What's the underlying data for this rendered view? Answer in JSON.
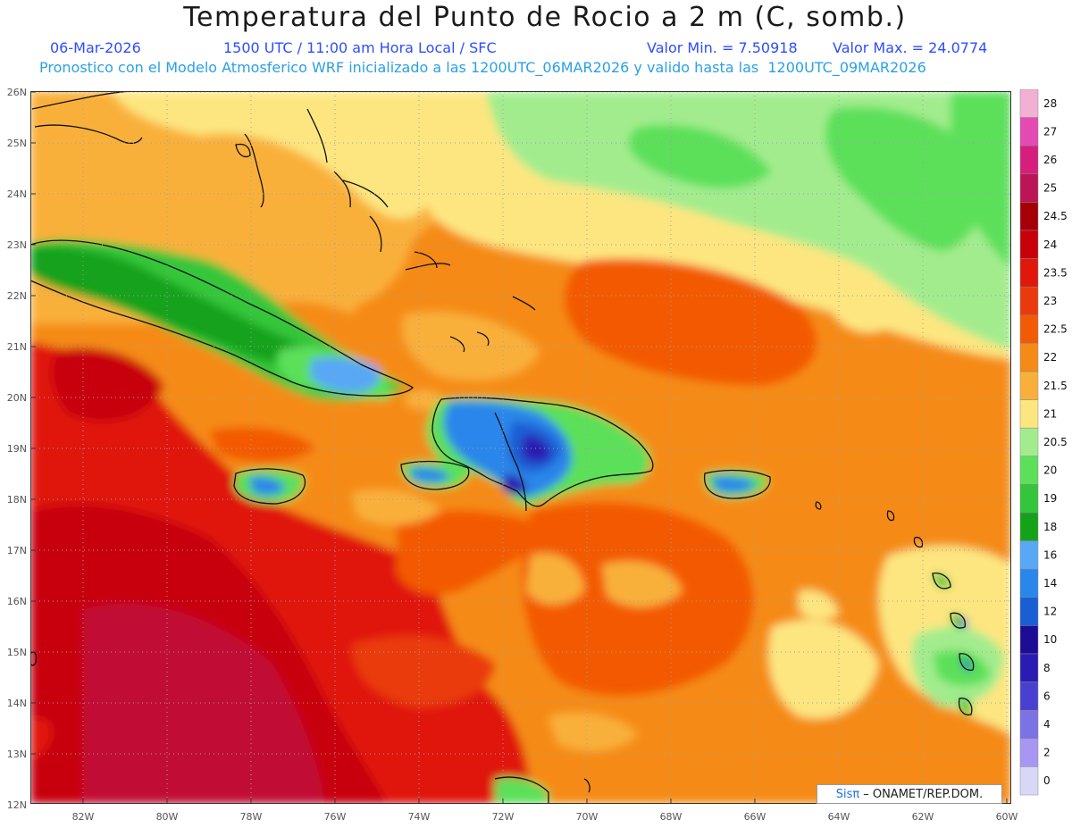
{
  "header": {
    "title": "Temperatura del Punto de Rocio a 2 m (C, somb.)",
    "date": "06-Mar-2026",
    "time": "1500 UTC / 11:00 am Hora Local / SFC",
    "min": "Valor Min. = 7.50918",
    "max": "Valor Max. = 24.0774",
    "model_line": "Pronostico con el Modelo Atmosferico WRF inicializado a las 1200UTC_06MAR2026 y valido hasta las  1200UTC_09MAR2026"
  },
  "map": {
    "lat_labels": [
      "26N",
      "25N",
      "24N",
      "23N",
      "22N",
      "21N",
      "20N",
      "19N",
      "18N",
      "17N",
      "16N",
      "15N",
      "14N",
      "13N",
      "12N"
    ],
    "lon_labels": [
      "82W",
      "80W",
      "78W",
      "76W",
      "74W",
      "72W",
      "70W",
      "68W",
      "66W",
      "64W",
      "62W",
      "60W"
    ],
    "credit": {
      "sis": "Sisπ",
      "rest": "– ONAMET/REP.DOM."
    }
  },
  "legend": {
    "levels": [
      "28",
      "27",
      "26",
      "25",
      "24.5",
      "24",
      "23.5",
      "23",
      "22.5",
      "22",
      "21.5",
      "21",
      "20.5",
      "20",
      "19",
      "18",
      "16",
      "14",
      "12",
      "10",
      "8",
      "6",
      "4",
      "2",
      "0"
    ],
    "colors": [
      "#f2b0d3",
      "#e34ab3",
      "#d61e7c",
      "#bb1457",
      "#a50008",
      "#c8000a",
      "#e0180c",
      "#ea3a0d",
      "#f35a06",
      "#f58b16",
      "#f9b03a",
      "#fde680",
      "#a3ec8e",
      "#5ce05a",
      "#34c63a",
      "#14a21b",
      "#58a8f5",
      "#2a86ea",
      "#1a5ed4",
      "#1d0d96",
      "#2a1cb2",
      "#4a40cf",
      "#7c72e4",
      "#a896f2",
      "#d8d8f6"
    ]
  }
}
